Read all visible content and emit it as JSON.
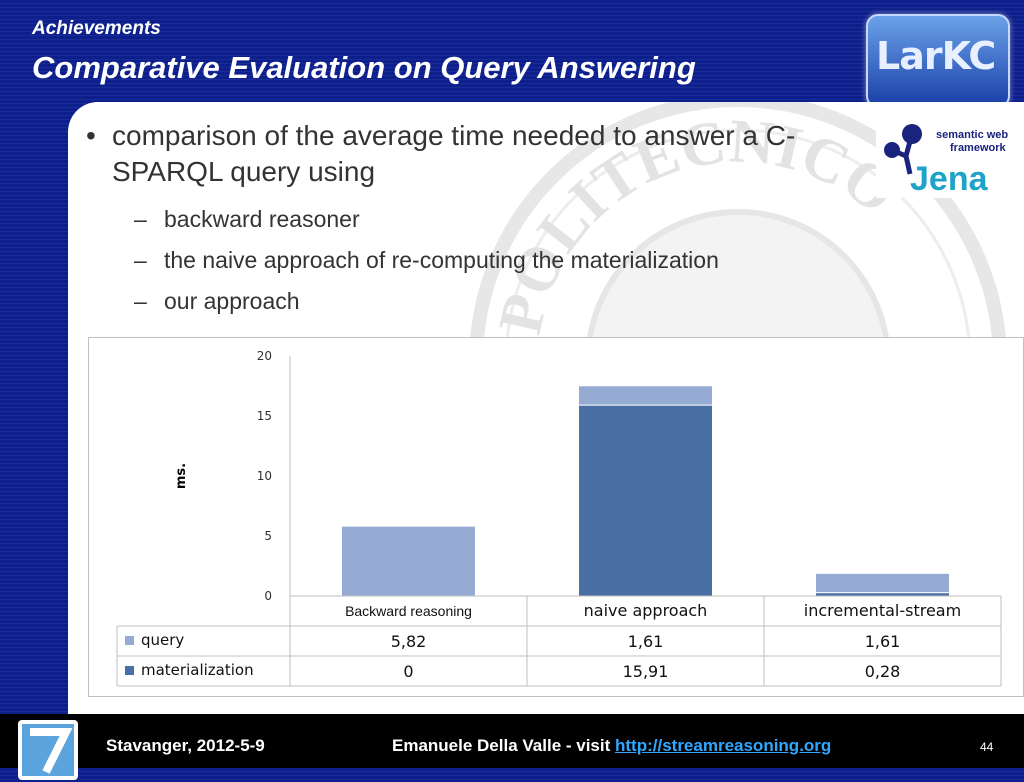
{
  "header": {
    "subtitle": "Achievements",
    "title": "Comparative Evaluation on Query Answering",
    "logo_text": "LarKC"
  },
  "content": {
    "bullet": "comparison of the average time needed to answer a C-SPARQL query using",
    "sub_items": [
      "backward reasoner",
      "the naive approach of re-computing the materialization",
      "our approach"
    ],
    "jena_logo": {
      "text": "Jena",
      "tagline_line1": "semantic web",
      "tagline_line2": "framework"
    },
    "watermark_text": "POLITECNICO"
  },
  "chart_data": {
    "type": "bar",
    "stacked": true,
    "categories": [
      "Backward reasoning",
      "naive approach",
      "incremental-stream"
    ],
    "series": [
      {
        "name": "query",
        "values": [
          5.82,
          1.61,
          1.61
        ],
        "labels": [
          "5,82",
          "1,61",
          "1,61"
        ],
        "color": "#95abd3"
      },
      {
        "name": "materialization",
        "values": [
          0,
          15.91,
          0.28
        ],
        "labels": [
          "0",
          "15,91",
          "0,28"
        ],
        "color": "#4a6fa5"
      }
    ],
    "yticks": [
      "0",
      "5",
      "10",
      "15",
      "20"
    ],
    "ylabel": "ms.",
    "ylim": [
      0,
      20
    ],
    "legend": "data-table"
  },
  "footer": {
    "location_date": "Stavanger, 2012-5-9",
    "author_text": "Emanuele Della Valle - visit ",
    "link": "http://streamreasoning.org",
    "page": "44"
  },
  "colors": {
    "background": "#0d1f8c",
    "footer_bg": "#000000",
    "link": "#2fa7ff"
  }
}
